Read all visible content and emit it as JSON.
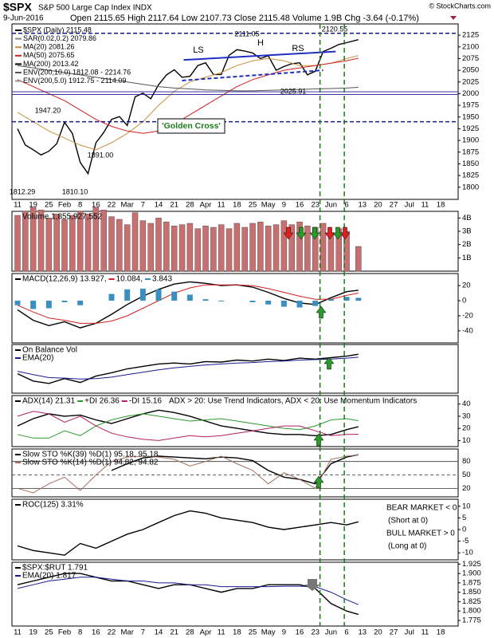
{
  "header": {
    "symbol": "$SPX",
    "name": "S&P 500 Large Cap Index INDX",
    "date": "9-Jun-2016",
    "quote": "Open 2115.65 High 2117.64 Low 2107.73 Close 2115.48 Volume 1.9B Chg -3.64 (-0.17%)",
    "copyright": "© StockCharts.com"
  },
  "vlines": [
    19.3,
    20.85
  ],
  "chart_data": [
    {
      "type": "line",
      "ylim": [
        1774,
        2149
      ],
      "yticks": [
        1800,
        1825,
        1850,
        1875,
        1900,
        1925,
        1950,
        1975,
        2000,
        2025,
        2050,
        2075,
        2100,
        2125
      ],
      "categories": [
        "11",
        "19",
        "25",
        "Feb",
        "8",
        "16",
        "22",
        "Mar",
        "7",
        "14",
        "21",
        "28",
        "Apr",
        "11",
        "18",
        "25",
        "May",
        "9",
        "16",
        "23",
        "Jun",
        "6",
        "13",
        "20",
        "27",
        "Jul",
        "11",
        "18"
      ],
      "x": [
        0,
        0.5,
        1,
        1.5,
        2,
        2.5,
        3,
        3.5,
        4,
        4.5,
        5,
        5.5,
        6,
        6.5,
        7,
        7.5,
        8,
        8.5,
        9,
        9.5,
        10,
        10.5,
        11,
        11.5,
        12,
        12.5,
        13,
        13.5,
        14,
        14.5,
        15,
        15.5,
        16,
        16.5,
        17,
        17.5,
        18,
        18.5,
        19,
        19.5,
        20,
        20.5,
        21,
        21.75
      ],
      "series": [
        {
          "name": "$SPX (Daily) 2115.48",
          "color": "#000000",
          "values": [
            1925,
            1890,
            1880,
            1869,
            1877,
            1893,
            1939,
            1915,
            1853,
            1829,
            1895,
            1917,
            1945,
            1951,
            1932,
            1993,
            2001,
            1989,
            2019,
            2040,
            2051,
            2035,
            2037,
            2060,
            2066,
            2041,
            2041,
            2082,
            2094,
            2091,
            2087,
            2075,
            2081,
            2050,
            2058,
            2064,
            2066,
            2040,
            2048,
            2090,
            2097,
            2105,
            2109,
            2115.48
          ]
        },
        {
          "name": "MA(20) 2081.26",
          "color": "#c89040",
          "x": [
            0,
            1,
            2,
            3,
            4,
            5,
            6,
            7,
            8,
            9,
            10,
            11,
            12,
            13,
            14,
            15,
            16,
            17,
            18,
            19,
            20,
            21,
            21.75
          ],
          "values": [
            1960,
            1940,
            1920,
            1905,
            1890,
            1880,
            1895,
            1915,
            1940,
            1975,
            2005,
            2025,
            2035,
            2045,
            2060,
            2070,
            2075,
            2070,
            2060,
            2060,
            2065,
            2075,
            2081.26
          ]
        },
        {
          "name": "MA(50) 2075.65",
          "color": "#d02020",
          "x": [
            0,
            1,
            2,
            3,
            4,
            5,
            6,
            7,
            8,
            9,
            10,
            11,
            12,
            13,
            14,
            15,
            16,
            17,
            18,
            19,
            20,
            21,
            21.75
          ],
          "values": [
            2030,
            2015,
            2000,
            1985,
            1965,
            1945,
            1930,
            1920,
            1915,
            1920,
            1935,
            1955,
            1975,
            1995,
            2015,
            2030,
            2040,
            2050,
            2055,
            2060,
            2065,
            2070,
            2075.65
          ]
        },
        {
          "name": "MA(200) 2013.42",
          "color": "#555555",
          "x": [
            0,
            1,
            2,
            3,
            4,
            5,
            6,
            7,
            8,
            9,
            10,
            11,
            12,
            13,
            14,
            15,
            16,
            17,
            18,
            19,
            20,
            21,
            21.75
          ],
          "values": [
            2060,
            2055,
            2050,
            2045,
            2040,
            2035,
            2030,
            2025,
            2020,
            2015,
            2012,
            2010,
            2008,
            2007,
            2006,
            2006,
            2007,
            2008,
            2009,
            2010,
            2011,
            2012,
            2013.42
          ]
        }
      ],
      "legend_extra": [
        "SAR(0.02,0.2) 2079.86",
        "ENV(200,10.0) 1812.08 - 2214.76",
        "ENV(200,5.0) 1912.75 - 2114.09"
      ],
      "levels": [
        2129,
        1940,
        2004,
        1998
      ],
      "trendlines": [
        {
          "x": [
            10.6,
            20.3
          ],
          "values": [
            2072,
            2090
          ]
        },
        {
          "x": [
            10.5,
            19.5
          ],
          "values": [
            2028,
            2050
          ]
        }
      ],
      "annotations": [
        "2111.05",
        "2120.55",
        "2025.91",
        "1947.20",
        "1891.00",
        "1812.29",
        "1810.10",
        "LS",
        "H",
        "RS",
        "'Golden Cross'"
      ]
    },
    {
      "type": "bar",
      "ylim": [
        0,
        4.5
      ],
      "yticks": [
        {
          "value": 1,
          "label": "1B"
        },
        {
          "value": 2,
          "label": "2B"
        },
        {
          "value": 3,
          "label": "3B"
        },
        {
          "value": 4,
          "label": "4B"
        }
      ],
      "x": [
        0,
        0.5,
        1,
        1.5,
        2,
        2.5,
        3,
        3.5,
        4,
        4.5,
        5,
        5.5,
        6,
        6.5,
        7,
        7.5,
        8,
        8.5,
        9,
        9.5,
        10,
        10.5,
        11,
        11.5,
        12,
        12.5,
        13,
        13.5,
        14,
        14.5,
        15,
        15.5,
        16,
        16.5,
        17,
        17.5,
        18,
        18.5,
        19,
        19.5,
        20,
        20.5,
        21,
        21.75
      ],
      "series": [
        {
          "name": "Volume 1,855,927,552",
          "color": "#c87070",
          "values": [
            4.2,
            4.5,
            4.8,
            4.6,
            4.0,
            4.3,
            3.9,
            4.2,
            4.5,
            4.3,
            4.8,
            4.6,
            4.1,
            3.9,
            3.5,
            4.4,
            3.8,
            3.6,
            4.0,
            3.7,
            3.4,
            3.5,
            3.6,
            3.2,
            3.4,
            3.3,
            3.5,
            3.2,
            3.6,
            3.3,
            3.6,
            3.7,
            3.4,
            3.5,
            3.8,
            3.5,
            3.7,
            3.4,
            3.3,
            3.6,
            2.9,
            3.2,
            3.0,
            1.86
          ]
        }
      ]
    },
    {
      "type": "line",
      "ylim": [
        -56,
        36
      ],
      "yticks": [
        -40,
        -20,
        0,
        20
      ],
      "x": [
        0,
        1,
        2,
        3,
        4,
        5,
        6,
        7,
        8,
        9,
        10,
        11,
        12,
        13,
        14,
        15,
        16,
        17,
        18,
        19,
        20,
        21,
        21.75
      ],
      "series": [
        {
          "name": "MACD(12,26,9) 13.927,",
          "color": "#000000",
          "values": [
            -12,
            -26,
            -33,
            -28,
            -36,
            -30,
            -18,
            -5,
            6,
            15,
            22,
            25,
            23,
            20,
            21,
            18,
            11,
            3,
            -3,
            -5,
            4,
            12,
            13.927
          ]
        },
        {
          "name": "10.084,",
          "color": "#d02020",
          "values": [
            -6,
            -15,
            -23,
            -26,
            -30,
            -30,
            -27,
            -20,
            -10,
            0,
            10,
            17,
            21,
            21,
            21,
            20,
            16,
            11,
            6,
            2,
            2,
            7,
            10.084
          ]
        },
        {
          "name": "3.843",
          "color": "#3a8ec0",
          "type": "bar",
          "values": [
            -6,
            -11,
            -10,
            -2,
            -6,
            0,
            9,
            15,
            16,
            15,
            12,
            8,
            2,
            -1,
            0,
            -2,
            -5,
            -8,
            -9,
            -7,
            2,
            5,
            3.843
          ]
        }
      ]
    },
    {
      "type": "line",
      "ylim": [
        0,
        100
      ],
      "x": [
        0,
        1,
        2,
        3,
        4,
        5,
        6,
        7,
        8,
        9,
        10,
        11,
        12,
        13,
        14,
        15,
        16,
        17,
        18,
        19,
        20,
        21,
        21.75
      ],
      "series": [
        {
          "name": "On Balance Vol",
          "color": "#000000",
          "values": [
            40,
            25,
            20,
            30,
            22,
            35,
            42,
            50,
            55,
            60,
            62,
            60,
            65,
            64,
            68,
            66,
            70,
            67,
            72,
            70,
            73,
            76,
            80
          ]
        },
        {
          "name": "EMA(20)",
          "color": "#1a1a90",
          "values": [
            45,
            38,
            32,
            31,
            29,
            30,
            33,
            38,
            43,
            48,
            52,
            55,
            58,
            60,
            62,
            63,
            65,
            66,
            68,
            69,
            70,
            72,
            74
          ]
        }
      ]
    },
    {
      "type": "line",
      "ylim": [
        5,
        47
      ],
      "yticks": [
        10,
        20,
        30,
        40
      ],
      "x": [
        0,
        1,
        2,
        3,
        4,
        5,
        6,
        7,
        8,
        9,
        10,
        11,
        12,
        13,
        14,
        15,
        16,
        17,
        18,
        19,
        20,
        21,
        21.75
      ],
      "series": [
        {
          "name": "ADX(14) 21.31",
          "color": "#000000",
          "values": [
            22,
            28,
            32,
            30,
            31,
            27,
            24,
            28,
            32,
            35,
            33,
            30,
            26,
            22,
            20,
            18,
            16,
            15,
            15,
            14,
            15,
            19,
            21.31
          ]
        },
        {
          "name": "+DI 26.36",
          "color": "#2a9a2a",
          "values": [
            15,
            12,
            12,
            18,
            14,
            22,
            27,
            30,
            32,
            30,
            28,
            26,
            27,
            28,
            26,
            24,
            22,
            20,
            19,
            22,
            27,
            28,
            26.36
          ]
        },
        {
          "name": "-DI 15.16",
          "color": "#b02060",
          "values": [
            30,
            34,
            32,
            25,
            30,
            22,
            16,
            13,
            11,
            10,
            12,
            14,
            13,
            14,
            16,
            18,
            20,
            22,
            22,
            18,
            14,
            15,
            15.16
          ]
        }
      ],
      "note": "ADX > 20: Use Trend Indicators, ADX < 20: Use Momentum Indicators"
    },
    {
      "type": "line",
      "ylim": [
        1,
        108
      ],
      "yticks": [
        20,
        50,
        80
      ],
      "grid": true,
      "x": [
        0,
        1,
        2,
        3,
        4,
        5,
        6,
        7,
        8,
        9,
        10,
        11,
        12,
        13,
        14,
        15,
        16,
        17,
        18,
        19,
        20,
        21,
        21.75
      ],
      "series": [
        {
          "name": "Slow STO %K(39) %D(1) 95.18, 95.18",
          "color": "#000000",
          "values": [
            null,
            null,
            null,
            null,
            null,
            null,
            60,
            75,
            88,
            92,
            90,
            88,
            86,
            90,
            88,
            82,
            60,
            45,
            40,
            30,
            75,
            90,
            95.18
          ]
        },
        {
          "name": "Slow STO %K(14) %D(1) 94.82, 94.82",
          "color": "#a07060",
          "values": [
            20,
            10,
            30,
            45,
            15,
            50,
            80,
            90,
            92,
            90,
            85,
            70,
            80,
            92,
            75,
            60,
            30,
            55,
            40,
            20,
            85,
            92,
            94.82
          ]
        }
      ]
    },
    {
      "type": "line",
      "ylim": [
        -13,
        13
      ],
      "yticks": [
        -10,
        -5,
        0,
        5,
        10
      ],
      "x": [
        0,
        1,
        2,
        3,
        4,
        5,
        6,
        7,
        8,
        9,
        10,
        11,
        12,
        13,
        14,
        15,
        16,
        17,
        18,
        19,
        20,
        21,
        21.75
      ],
      "series": [
        {
          "name": "ROC(125) 3.31%",
          "color": "#000000",
          "values": [
            -7,
            -9,
            -10,
            -11,
            -6,
            -8,
            -5,
            -2,
            0,
            3,
            6,
            8,
            7,
            5,
            4,
            3,
            1,
            0,
            1,
            2,
            3,
            2,
            3.31
          ]
        }
      ],
      "notes": [
        "BEAR MARKET < 0",
        "(Short at 0)",
        "BULL MARKET > 0",
        "(Long at 0)"
      ]
    },
    {
      "type": "line",
      "ylim": [
        1.76,
        1.93
      ],
      "yticks": [
        1.775,
        {
          "value": 1.8,
          "label": "1.800"
        },
        1.825,
        {
          "value": 1.85,
          "label": "1.850"
        },
        1.875,
        {
          "value": 1.9,
          "label": "1.900"
        },
        1.925
      ],
      "categories": [
        "11",
        "19",
        "25",
        "Feb",
        "8",
        "16",
        "22",
        "Mar",
        "7",
        "14",
        "21",
        "28",
        "Apr",
        "11",
        "18",
        "25",
        "May",
        "9",
        "16",
        "23",
        "Jun",
        "6",
        "13",
        "20",
        "27",
        "Jul",
        "11",
        "18"
      ],
      "x": [
        0,
        1,
        2,
        3,
        4,
        5,
        6,
        7,
        8,
        9,
        10,
        11,
        12,
        13,
        14,
        15,
        16,
        17,
        18,
        19,
        20,
        21,
        21.75
      ],
      "series": [
        {
          "name": "$SPX:$RUT 1.791",
          "color": "#000000",
          "values": [
            1.87,
            1.88,
            1.89,
            1.9,
            1.9,
            1.89,
            1.88,
            1.88,
            1.87,
            1.86,
            1.87,
            1.87,
            1.86,
            1.85,
            1.86,
            1.86,
            1.87,
            1.87,
            1.87,
            1.86,
            1.82,
            1.8,
            1.791
          ]
        },
        {
          "name": "EMA(20) 1.817",
          "color": "#1a1a90",
          "values": [
            1.86,
            1.87,
            1.88,
            1.885,
            1.89,
            1.89,
            1.885,
            1.88,
            1.88,
            1.875,
            1.875,
            1.87,
            1.87,
            1.865,
            1.865,
            1.865,
            1.865,
            1.866,
            1.866,
            1.865,
            1.85,
            1.83,
            1.817
          ]
        }
      ]
    }
  ]
}
